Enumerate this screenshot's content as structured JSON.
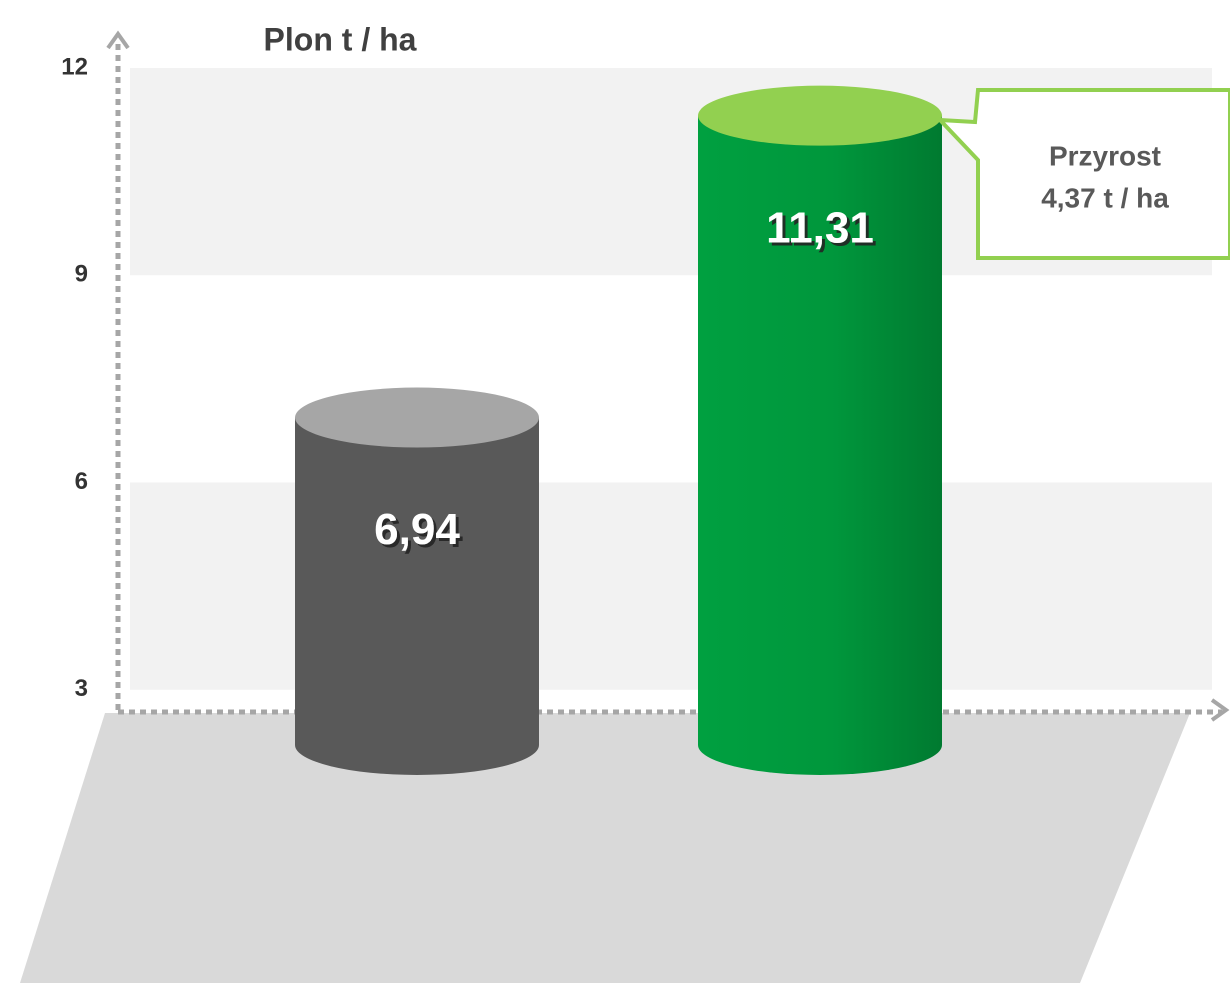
{
  "chart_data": {
    "type": "bar",
    "title": "Plon t / ha",
    "categories": [
      null,
      null
    ],
    "values": [
      6.94,
      11.31
    ],
    "value_labels": [
      "6,94",
      "11,31"
    ],
    "colors": [
      "#595959",
      "#00a040"
    ],
    "ylim": [
      0,
      12
    ],
    "yticks": [
      3,
      6,
      9,
      12
    ],
    "grid": true,
    "annotation_lines": [
      "Przyrost",
      "4,37 t / ha"
    ]
  }
}
